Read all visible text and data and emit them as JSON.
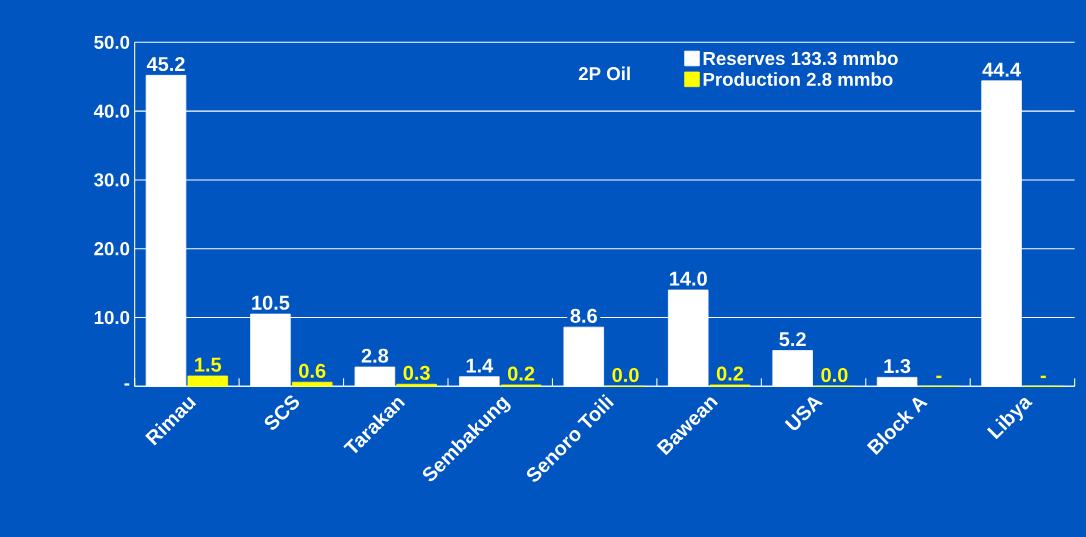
{
  "chart_data": {
    "type": "bar",
    "title": "2P Oil",
    "categories": [
      "Rimau",
      "SCS",
      "Tarakan",
      "Sembakung",
      "Senoro Toili",
      "Bawean",
      "USA",
      "Block A",
      "Libya"
    ],
    "series": [
      {
        "name": "Reserves 133.3 mmbo",
        "color": "#ffffff",
        "values": [
          45.2,
          10.5,
          2.8,
          1.4,
          8.6,
          14.0,
          5.2,
          1.3,
          44.4
        ],
        "value_labels": [
          "45.2",
          "10.5",
          "2.8",
          "1.4",
          "8.6",
          "14.0",
          "5.2",
          "1.3",
          "44.4"
        ]
      },
      {
        "name": "Production 2.8 mmbo",
        "color": "#ffff00",
        "values": [
          1.5,
          0.6,
          0.3,
          0.2,
          0.0,
          0.2,
          0.0,
          0,
          0
        ],
        "value_labels": [
          "1.5",
          "0.6",
          "0.3",
          "0.2",
          "0.0",
          "0.2",
          "0.0",
          "-",
          "-"
        ]
      }
    ],
    "ylim": [
      0,
      50
    ],
    "yticks": [
      {
        "value": 0,
        "label": "-"
      },
      {
        "value": 10,
        "label": "10.0"
      },
      {
        "value": 20,
        "label": "20.0"
      },
      {
        "value": 30,
        "label": "30.0"
      },
      {
        "value": 40,
        "label": "40.0"
      },
      {
        "value": 50,
        "label": "50.0"
      }
    ],
    "grid": "y",
    "legend": "top right"
  }
}
